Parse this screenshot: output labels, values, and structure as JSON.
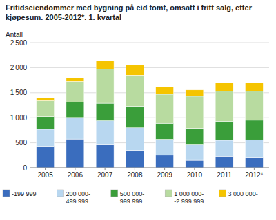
{
  "chart_data": {
    "type": "bar",
    "stacked": true,
    "title": "Fritidseiendommer med bygning på eid tomt, omsatt i fritt salg, etter\nkjøpesum. 2005-2012*. 1. kvartal",
    "ylabel": "Antall",
    "categories": [
      "2005",
      "2006",
      "2007",
      "2008",
      "2009",
      "2010",
      "2011",
      "2012*"
    ],
    "series": [
      {
        "name": "-199 999",
        "color": "#3a6dbe",
        "values": [
          420,
          575,
          460,
          350,
          250,
          150,
          230,
          200
        ]
      },
      {
        "name": "200 000-\n499 999",
        "color": "#b8d7f0",
        "values": [
          350,
          430,
          480,
          450,
          320,
          310,
          320,
          360
        ]
      },
      {
        "name": "500 000-\n999 999",
        "color": "#3a9e3a",
        "values": [
          250,
          310,
          350,
          430,
          320,
          330,
          380,
          390
        ]
      },
      {
        "name": "1 000 000-\n-2 999 999",
        "color": "#b8dba0",
        "values": [
          320,
          410,
          680,
          620,
          580,
          640,
          600,
          580
        ]
      },
      {
        "name": "3 000 000-",
        "color": "#f5c400",
        "values": [
          60,
          70,
          165,
          200,
          145,
          125,
          165,
          170
        ]
      }
    ],
    "ylim": [
      0,
      2500
    ],
    "yticks": [
      0,
      500,
      {
        "value": 1000,
        "label": "1 000"
      },
      {
        "value": 1500,
        "label": "1 500"
      },
      {
        "value": 2000,
        "label": "2 000"
      },
      {
        "value": 2500,
        "label": "2 500"
      }
    ],
    "grid": true,
    "legend": "bottom"
  }
}
